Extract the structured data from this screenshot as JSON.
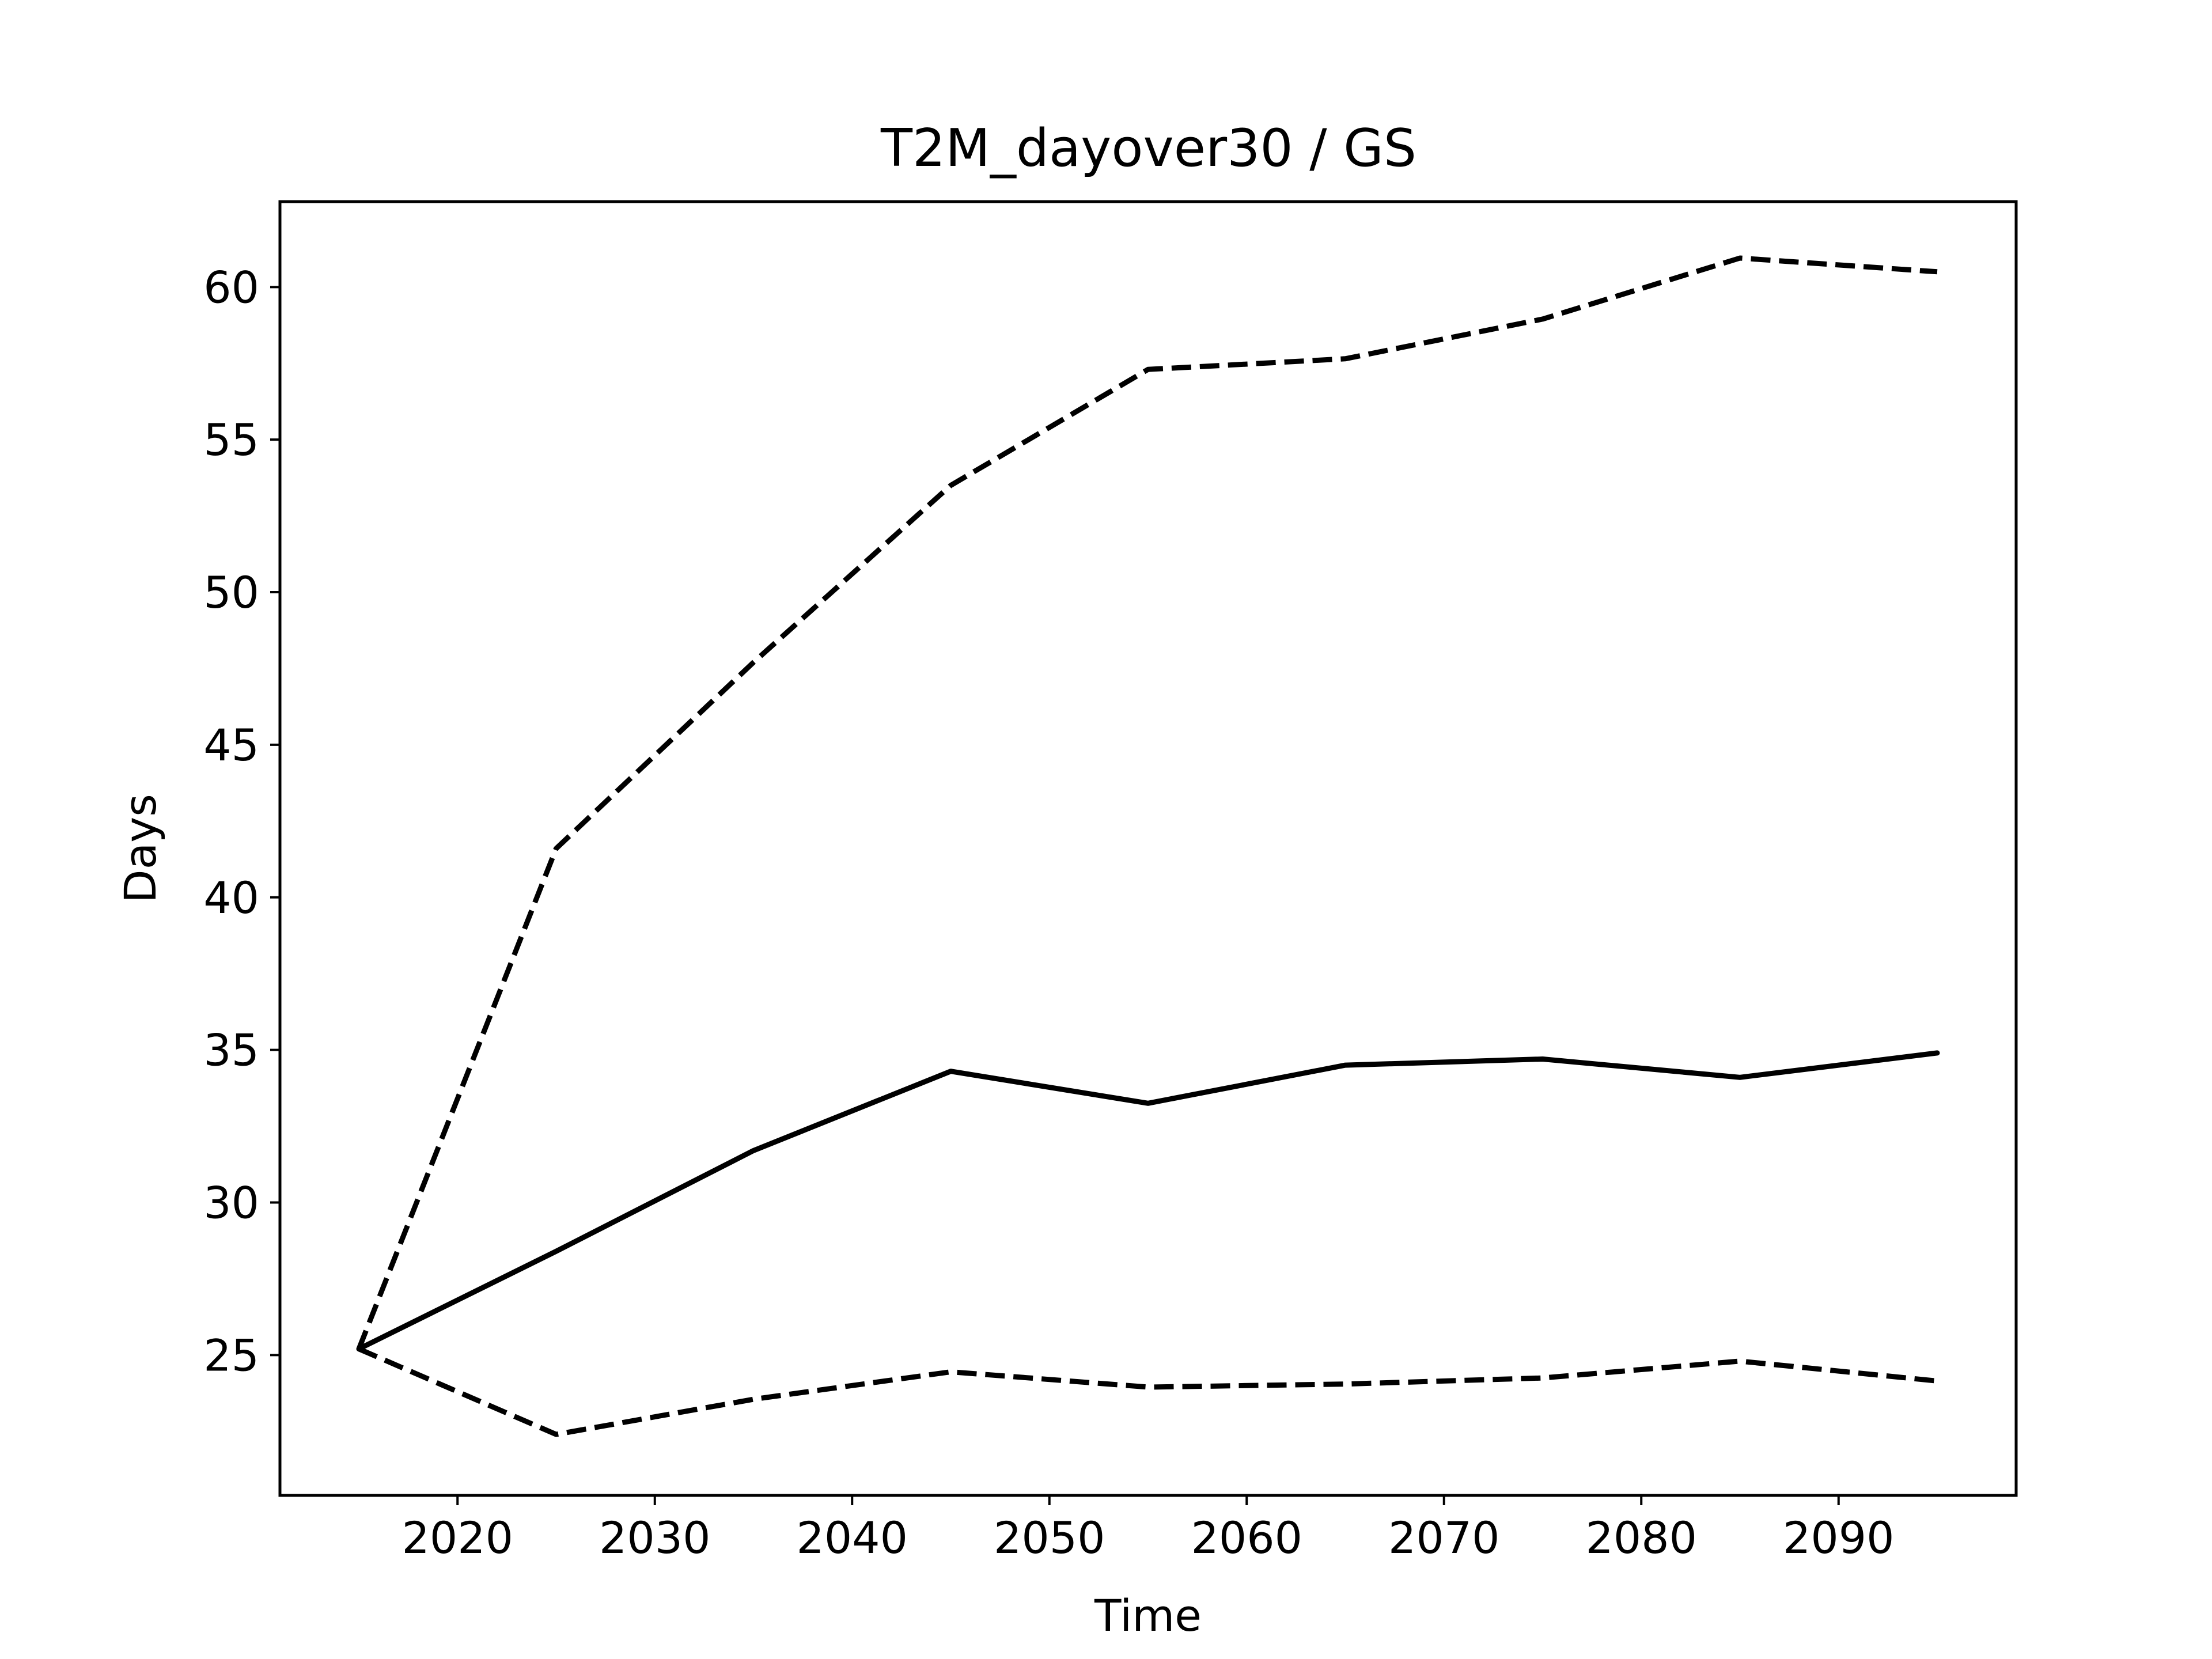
{
  "chart_data": {
    "type": "line",
    "title": "T2M_dayover30 / GS",
    "xlabel": "Time",
    "ylabel": "Days",
    "xlim": [
      2011,
      2099
    ],
    "ylim": [
      20.4,
      62.8
    ],
    "xticks": [
      2020,
      2030,
      2040,
      2050,
      2060,
      2070,
      2080,
      2090
    ],
    "yticks": [
      25,
      30,
      35,
      40,
      45,
      50,
      55,
      60
    ],
    "grid": false,
    "x": [
      2015,
      2025,
      2035,
      2045,
      2055,
      2065,
      2075,
      2085,
      2095
    ],
    "series": [
      {
        "style": "solid",
        "color": "#000000",
        "values": [
          25.2,
          28.4,
          31.7,
          34.3,
          33.25,
          34.5,
          34.7,
          34.1,
          34.9
        ]
      },
      {
        "style": "dashed",
        "color": "#000000",
        "values": [
          25.2,
          41.6,
          47.7,
          53.5,
          57.3,
          57.65,
          58.95,
          60.95,
          60.5
        ]
      },
      {
        "style": "dashed",
        "color": "#000000",
        "values": [
          25.2,
          22.4,
          23.55,
          24.45,
          23.95,
          24.05,
          24.25,
          24.8,
          24.15
        ]
      }
    ]
  }
}
